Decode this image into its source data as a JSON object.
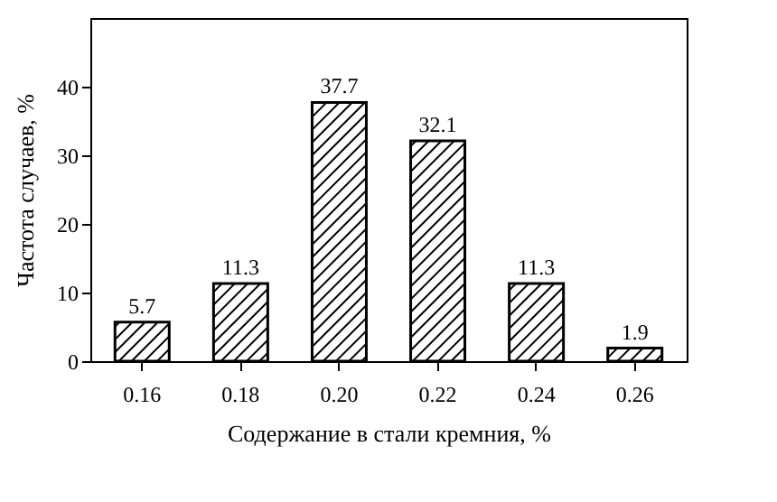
{
  "chart_data": {
    "type": "bar",
    "xlabel": "Содержание в стали кремния, %",
    "ylabel": "Частота случаев, %",
    "categories": [
      "0.16",
      "0.18",
      "0.20",
      "0.22",
      "0.24",
      "0.26"
    ],
    "values": [
      5.7,
      11.3,
      37.7,
      32.1,
      11.3,
      1.9
    ],
    "color": "#000000",
    "ylim": [
      0,
      50
    ],
    "yticks": [
      0,
      10,
      20,
      30,
      40
    ],
    "grid": false,
    "data_labels": true
  }
}
